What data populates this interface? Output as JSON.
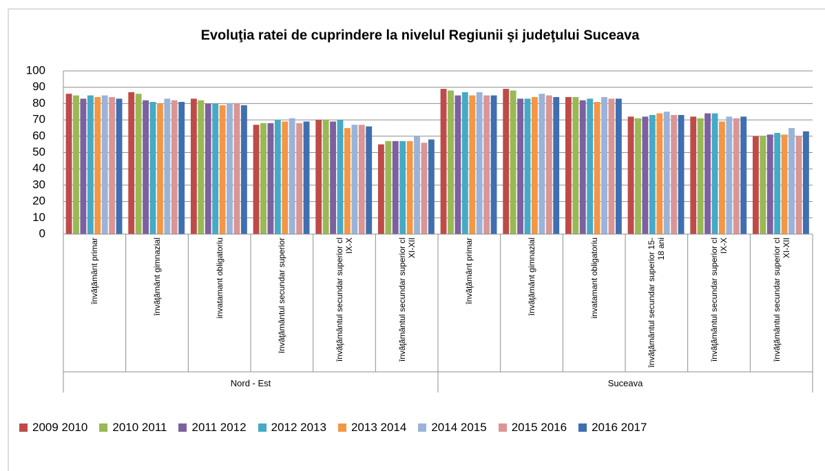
{
  "chart_data": {
    "type": "bar",
    "title": "Evoluţia ratei de cuprindere la nivelul Regiunii şi judeţului Suceava",
    "categories": [
      "învăţământ primar",
      "învăţământ gimnazial",
      "invatamant obligatoriu",
      "învăţământul secundar superior",
      "învăţământul secundar superior cl IX-X",
      "învăţământul secundar superior cl XI-XII",
      "învăţământ primar",
      "învăţământ gimnazial",
      "invatamant obligatoriu",
      "învăţământul secundar superior 15-18 ani",
      "învăţământul secundar superior cl IX-X",
      "învăţământul secundar superior cl XI-XII"
    ],
    "groups": [
      "Nord - Est",
      "Suceava"
    ],
    "series": [
      {
        "name": "2009 2010",
        "color": "#be4b48",
        "values": [
          86,
          87,
          83,
          67,
          70,
          55,
          89,
          89,
          84,
          72,
          72,
          60
        ]
      },
      {
        "name": "2010 2011",
        "color": "#98b954",
        "values": [
          85,
          86,
          82,
          68,
          70,
          57,
          88,
          88,
          84,
          71,
          71,
          60
        ]
      },
      {
        "name": "2011 2012",
        "color": "#7d60a0",
        "values": [
          83,
          82,
          80,
          68,
          69,
          57,
          85,
          83,
          82,
          72,
          74,
          61
        ]
      },
      {
        "name": "2012 2013",
        "color": "#46aac5",
        "values": [
          85,
          81,
          80,
          70,
          70,
          57,
          87,
          83,
          83,
          73,
          74,
          62
        ]
      },
      {
        "name": "2013 2014",
        "color": "#f59645",
        "values": [
          84,
          80,
          79,
          69,
          65,
          57,
          85,
          84,
          81,
          74,
          69,
          61
        ]
      },
      {
        "name": "2014 2015",
        "color": "#9bb3d9",
        "values": [
          85,
          83,
          80,
          71,
          67,
          60,
          87,
          86,
          84,
          75,
          72,
          65
        ]
      },
      {
        "name": "2015 2016",
        "color": "#d99694",
        "values": [
          84,
          82,
          80,
          68,
          67,
          56,
          85,
          85,
          83,
          73,
          71,
          60
        ]
      },
      {
        "name": "2016 2017",
        "color": "#3f6fb0",
        "values": [
          83,
          81,
          79,
          69,
          66,
          58,
          85,
          84,
          83,
          73,
          72,
          63
        ]
      }
    ],
    "ylim": [
      0,
      100
    ],
    "yticks": [
      0,
      10,
      20,
      30,
      40,
      50,
      60,
      70,
      80,
      90,
      100
    ],
    "grid": true
  }
}
